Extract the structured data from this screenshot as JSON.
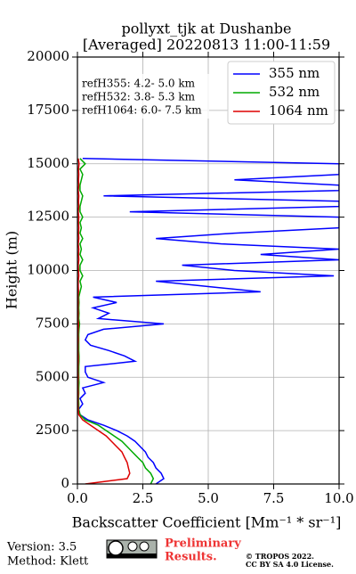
{
  "chart_data": {
    "type": "profile",
    "title": "pollyxt_tjk at Dushanbe",
    "subtitle": "[Averaged] 20220813 11:00-11:59",
    "x_label": "Backscatter Coefficient [Mm⁻¹ * sr⁻¹]",
    "y_label": "Height (m)",
    "annotations": [
      "refH355:  4.2- 5.0 km",
      "refH532:  3.8- 5.3 km",
      "refH1064:  6.0- 7.5 km"
    ],
    "xlim": [
      0,
      10
    ],
    "ylim": [
      0,
      20000
    ],
    "xticks": [
      {
        "value": 0,
        "label": "0.0"
      },
      {
        "value": 2.5,
        "label": "2.5"
      },
      {
        "value": 5,
        "label": "5.0"
      },
      {
        "value": 7.5,
        "label": "7.5"
      },
      {
        "value": 10,
        "label": "10.0"
      }
    ],
    "yticks": [
      0,
      2500,
      5000,
      7500,
      10000,
      12500,
      15000,
      17500,
      20000
    ],
    "grid": true,
    "legend": "upper right",
    "heights": [
      0,
      250,
      500,
      750,
      1000,
      1250,
      1500,
      1750,
      2000,
      2250,
      2500,
      2750,
      3000,
      3250,
      3500,
      3750,
      4000,
      4250,
      4500,
      4750,
      5000,
      5250,
      5500,
      5750,
      6000,
      6250,
      6500,
      6750,
      7000,
      7250,
      7500,
      7750,
      8000,
      8250,
      8500,
      8750,
      9000,
      9250,
      9500,
      9750,
      10000,
      10250,
      10500,
      10750,
      11000,
      11250,
      11500,
      11750,
      12000,
      12250,
      12500,
      12750,
      13000,
      13250,
      13500,
      13750,
      14000,
      14250,
      14500,
      14750,
      15000,
      15250
    ],
    "series": [
      {
        "name": "355 nm",
        "color": "#0000ff",
        "values": [
          3.0,
          3.3,
          3.2,
          3.0,
          2.9,
          2.7,
          2.6,
          2.4,
          2.2,
          1.9,
          1.5,
          1.0,
          0.4,
          0.1,
          0.05,
          0.2,
          0.1,
          0.3,
          0.2,
          1.0,
          0.4,
          0.3,
          0.3,
          2.2,
          1.8,
          1.2,
          0.5,
          0.3,
          0.4,
          1.0,
          3.3,
          0.8,
          1.2,
          0.6,
          1.5,
          0.6,
          7.0,
          5.0,
          3.0,
          9.8,
          6.0,
          4.0,
          10.0,
          7.0,
          10.0,
          5.5,
          3.0,
          6.0,
          10.0,
          10.0,
          10.0,
          2.0,
          10.0,
          10.0,
          1.0,
          10.0,
          10.0,
          6.0,
          10.0,
          10.0,
          10.0,
          0.2
        ]
      },
      {
        "name": "532 nm",
        "color": "#00aa00",
        "values": [
          2.8,
          2.9,
          2.8,
          2.6,
          2.5,
          2.3,
          2.1,
          1.9,
          1.7,
          1.4,
          1.1,
          0.8,
          0.3,
          0.1,
          0.05,
          0.05,
          0.04,
          0.05,
          0.05,
          0.06,
          0.05,
          0.05,
          0.05,
          0.06,
          0.06,
          0.05,
          0.05,
          0.05,
          0.05,
          0.06,
          0.08,
          0.05,
          0.06,
          0.05,
          0.06,
          0.05,
          0.1,
          0.15,
          0.1,
          0.2,
          0.1,
          0.1,
          0.2,
          0.1,
          0.15,
          0.1,
          0.2,
          0.1,
          0.15,
          0.1,
          0.2,
          0.1,
          0.1,
          0.15,
          0.2,
          0.1,
          0.1,
          0.15,
          0.2,
          0.1,
          0.3,
          0.1
        ]
      },
      {
        "name": "1064 nm",
        "color": "#dd0000",
        "values": [
          0.3,
          1.9,
          2.0,
          1.95,
          1.9,
          1.8,
          1.7,
          1.5,
          1.3,
          1.1,
          0.8,
          0.5,
          0.2,
          0.05,
          0.03,
          0.02,
          0.02,
          0.03,
          0.02,
          0.02,
          0.03,
          0.02,
          0.02,
          0.03,
          0.03,
          0.02,
          0.02,
          0.03,
          0.02,
          0.03,
          0.04,
          0.02,
          0.03,
          0.02,
          0.03,
          0.02,
          0.04,
          0.03,
          0.03,
          0.05,
          0.04,
          0.03,
          0.05,
          0.04,
          0.05,
          0.03,
          0.05,
          0.04,
          0.05,
          0.04,
          0.05,
          0.03,
          0.05,
          0.04,
          0.05,
          0.03,
          0.05,
          0.04,
          0.05,
          0.04,
          0.06,
          0.03
        ]
      }
    ],
    "footer": {
      "version": "Version: 3.5",
      "method": "Method: Klett",
      "notice": [
        "Preliminary",
        "Results."
      ],
      "copyright": [
        "© TROPOS 2022.",
        "CC BY SA 4.0 License."
      ]
    }
  }
}
